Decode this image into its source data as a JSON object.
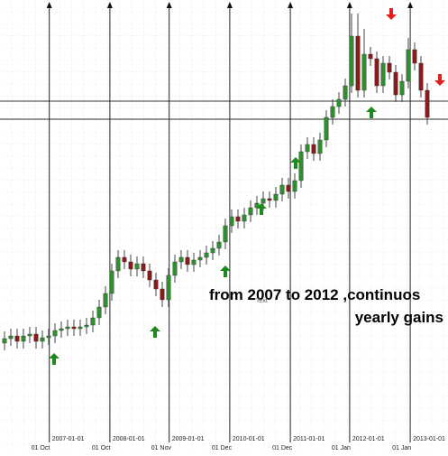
{
  "chart_data": {
    "type": "candlestick",
    "open": [
      120,
      125,
      128,
      122,
      128,
      130,
      122,
      126,
      128,
      134,
      136,
      138,
      136,
      138,
      140,
      148,
      160,
      175,
      200,
      215,
      210,
      202,
      208,
      200,
      190,
      180,
      168,
      195,
      210,
      215,
      207,
      212,
      215,
      220,
      225,
      232,
      250,
      260,
      255,
      262,
      270,
      275,
      280,
      278,
      285,
      295,
      288,
      300,
      332,
      340,
      330,
      345,
      370,
      382,
      390,
      405,
      460,
      400,
      440,
      435,
      405,
      430,
      420,
      395,
      410,
      445,
      430,
      400
    ],
    "high": [
      133,
      136,
      136,
      136,
      138,
      138,
      134,
      136,
      142,
      144,
      146,
      146,
      146,
      148,
      156,
      168,
      183,
      208,
      223,
      223,
      218,
      216,
      216,
      208,
      198,
      188,
      203,
      218,
      223,
      223,
      220,
      223,
      228,
      233,
      240,
      258,
      268,
      268,
      270,
      278,
      283,
      288,
      288,
      293,
      303,
      303,
      308,
      340,
      348,
      348,
      353,
      378,
      390,
      398,
      413,
      485,
      485,
      468,
      448,
      443,
      438,
      438,
      428,
      418,
      458,
      453,
      438,
      408
    ],
    "low": [
      112,
      117,
      114,
      114,
      120,
      114,
      114,
      118,
      120,
      126,
      128,
      128,
      128,
      130,
      132,
      140,
      152,
      167,
      192,
      202,
      194,
      194,
      192,
      182,
      172,
      160,
      160,
      187,
      202,
      199,
      199,
      204,
      207,
      212,
      217,
      224,
      242,
      247,
      247,
      254,
      262,
      267,
      270,
      270,
      277,
      280,
      280,
      292,
      324,
      322,
      322,
      337,
      362,
      374,
      382,
      397,
      392,
      392,
      427,
      397,
      397,
      412,
      387,
      387,
      402,
      422,
      392,
      362
    ],
    "close": [
      125,
      128,
      122,
      128,
      130,
      122,
      126,
      128,
      134,
      136,
      138,
      136,
      138,
      140,
      148,
      160,
      175,
      200,
      215,
      210,
      202,
      208,
      200,
      190,
      180,
      168,
      195,
      210,
      215,
      207,
      212,
      215,
      220,
      225,
      232,
      250,
      260,
      255,
      262,
      270,
      275,
      280,
      278,
      285,
      295,
      288,
      300,
      332,
      340,
      330,
      345,
      370,
      382,
      390,
      405,
      460,
      400,
      440,
      435,
      405,
      430,
      420,
      395,
      410,
      445,
      430,
      400,
      370
    ],
    "up_color": "#2f8f2f",
    "down_color": "#8b1a1a",
    "ylim": [
      0,
      500
    ],
    "hlines": [
      388,
      368
    ],
    "markers": [
      {
        "at": 7.1,
        "label": "2007-01-01",
        "sublabel": "01 Oct"
      },
      {
        "at": 16.7,
        "label": "2008-01-01",
        "sublabel": "01 Oct"
      },
      {
        "at": 26.1,
        "label": "2009-01-01",
        "sublabel": "01 Nov"
      },
      {
        "at": 35.7,
        "label": "2010-01-01",
        "sublabel": "01 Dec"
      },
      {
        "at": 45.3,
        "label": "2011-01-01",
        "sublabel": "01 Dec"
      },
      {
        "at": 54.7,
        "label": "2012-01-01",
        "sublabel": "01 Jan"
      },
      {
        "at": 64.3,
        "label": "2013-01-01",
        "sublabel": "01 Jan"
      }
    ],
    "annotations": [
      "from 2007 to 2012 ,continuos",
      "yearly gains",
      "Text"
    ]
  }
}
